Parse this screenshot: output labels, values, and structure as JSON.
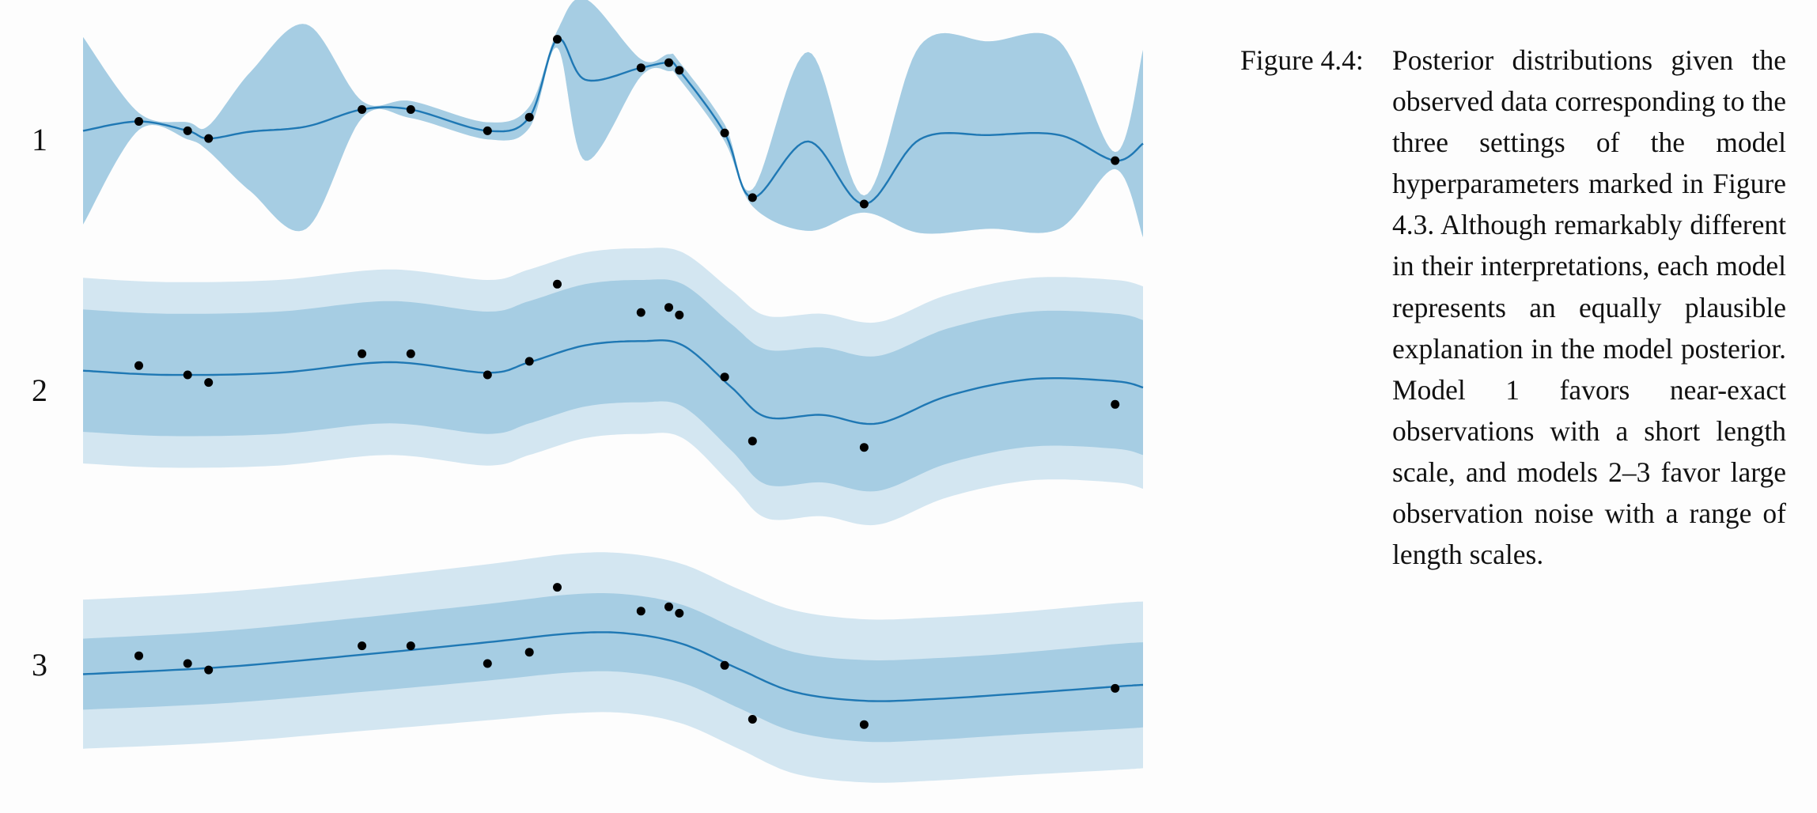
{
  "caption": {
    "label": "Figure 4.4:",
    "text": "Posterior distributions given the observed data correspond­ing to the three settings of the model hyperparameters marked in Figure 4.3. Al­though remarkably different in their interpretations, each model represents an equally plausible explanation in the model posterior. Model 1 fa­vors near-exact observations with a short length scale, and models 2–3 favor large obser­vation noise with a range of length scales."
  },
  "colors": {
    "inner_band": "#a6cde3",
    "outer_band": "#d3e6f1",
    "mean_line": "#1f78b4",
    "observation": "#000000"
  },
  "chart_data": [
    {
      "type": "line",
      "panel_label": "1",
      "observations_x": [
        0.08,
        0.15,
        0.18,
        0.4,
        0.47,
        0.58,
        0.64,
        0.68,
        0.8,
        0.84,
        0.855,
        0.92,
        0.96,
        1.12,
        1.48
      ],
      "observations_y": [
        0.52,
        0.3,
        0.12,
        0.8,
        0.8,
        0.3,
        0.62,
        2.45,
        1.78,
        1.9,
        1.72,
        0.25,
        -1.27,
        -1.42,
        -0.4
      ],
      "mean": {
        "x": [
          0.0,
          0.08,
          0.15,
          0.18,
          0.24,
          0.32,
          0.4,
          0.47,
          0.58,
          0.64,
          0.68,
          0.72,
          0.8,
          0.84,
          0.855,
          0.92,
          0.96,
          1.04,
          1.12,
          1.2,
          1.3,
          1.4,
          1.48,
          1.52
        ],
        "y": [
          0.3,
          0.52,
          0.3,
          0.12,
          0.28,
          0.4,
          0.8,
          0.8,
          0.3,
          0.62,
          2.45,
          1.5,
          1.78,
          1.9,
          1.72,
          0.25,
          -1.27,
          0.05,
          -1.42,
          0.1,
          0.2,
          0.2,
          -0.4,
          0.0
        ]
      },
      "band_inner_halfwidth": [
        2.2,
        0.2,
        0.2,
        0.3,
        1.4,
        2.4,
        0.2,
        0.2,
        0.2,
        0.25,
        0.2,
        1.9,
        0.2,
        0.2,
        0.2,
        0.2,
        0.2,
        2.1,
        0.2,
        2.2,
        2.2,
        2.2,
        0.2,
        2.2
      ],
      "band_outer_halfwidth": [
        2.2,
        0.2,
        0.2,
        0.3,
        1.4,
        2.4,
        0.2,
        0.2,
        0.2,
        0.25,
        0.2,
        1.9,
        0.2,
        0.2,
        0.2,
        0.2,
        0.2,
        2.1,
        0.2,
        2.2,
        2.2,
        2.2,
        0.2,
        2.2
      ],
      "xlim": [
        0,
        1.52
      ],
      "ylim": [
        -2.2,
        3.0
      ]
    },
    {
      "type": "line",
      "panel_label": "2",
      "observations_x": [
        0.08,
        0.15,
        0.18,
        0.4,
        0.47,
        0.58,
        0.64,
        0.68,
        0.8,
        0.84,
        0.855,
        0.92,
        0.96,
        1.12,
        1.48
      ],
      "observations_y": [
        0.52,
        0.3,
        0.12,
        0.8,
        0.8,
        0.3,
        0.62,
        2.45,
        1.78,
        1.9,
        1.72,
        0.25,
        -1.27,
        -1.42,
        -0.4
      ],
      "mean": {
        "x": [
          0.0,
          0.12,
          0.28,
          0.44,
          0.58,
          0.64,
          0.72,
          0.8,
          0.86,
          0.93,
          0.98,
          1.06,
          1.14,
          1.24,
          1.36,
          1.48,
          1.52
        ],
        "y": [
          0.4,
          0.3,
          0.35,
          0.6,
          0.35,
          0.6,
          1.0,
          1.1,
          1.0,
          0.0,
          -0.7,
          -0.65,
          -0.85,
          -0.2,
          0.2,
          0.15,
          0.0
        ]
      },
      "band_inner_halfwidth": [
        1.45,
        1.45,
        1.45,
        1.45,
        1.45,
        1.45,
        1.45,
        1.45,
        1.45,
        1.5,
        1.6,
        1.6,
        1.6,
        1.6,
        1.6,
        1.6,
        1.6
      ],
      "band_outer_halfwidth": [
        2.2,
        2.2,
        2.2,
        2.2,
        2.2,
        2.2,
        2.2,
        2.2,
        2.2,
        2.3,
        2.4,
        2.4,
        2.4,
        2.4,
        2.4,
        2.4,
        2.4
      ],
      "xlim": [
        0,
        1.52
      ],
      "ylim": [
        -3.0,
        3.0
      ]
    },
    {
      "type": "line",
      "panel_label": "3",
      "observations_x": [
        0.08,
        0.15,
        0.18,
        0.4,
        0.47,
        0.58,
        0.64,
        0.68,
        0.8,
        0.84,
        0.855,
        0.92,
        0.96,
        1.12,
        1.48
      ],
      "observations_y": [
        0.52,
        0.3,
        0.12,
        0.8,
        0.8,
        0.3,
        0.62,
        2.45,
        1.78,
        1.9,
        1.72,
        0.25,
        -1.27,
        -1.42,
        -0.4
      ],
      "mean": {
        "x": [
          0.0,
          0.2,
          0.4,
          0.58,
          0.7,
          0.78,
          0.86,
          0.94,
          1.02,
          1.12,
          1.22,
          1.34,
          1.48,
          1.52
        ],
        "y": [
          0.0,
          0.2,
          0.55,
          0.9,
          1.15,
          1.15,
          0.85,
          0.15,
          -0.5,
          -0.75,
          -0.7,
          -0.55,
          -0.35,
          -0.3
        ]
      },
      "band_inner_halfwidth": [
        1.0,
        1.02,
        1.05,
        1.08,
        1.1,
        1.1,
        1.1,
        1.1,
        1.12,
        1.15,
        1.15,
        1.15,
        1.2,
        1.2
      ],
      "band_outer_halfwidth": [
        2.1,
        2.12,
        2.15,
        2.2,
        2.25,
        2.25,
        2.25,
        2.25,
        2.3,
        2.3,
        2.3,
        2.3,
        2.35,
        2.35
      ],
      "xlim": [
        0,
        1.52
      ],
      "ylim": [
        -3.4,
        3.4
      ]
    }
  ]
}
